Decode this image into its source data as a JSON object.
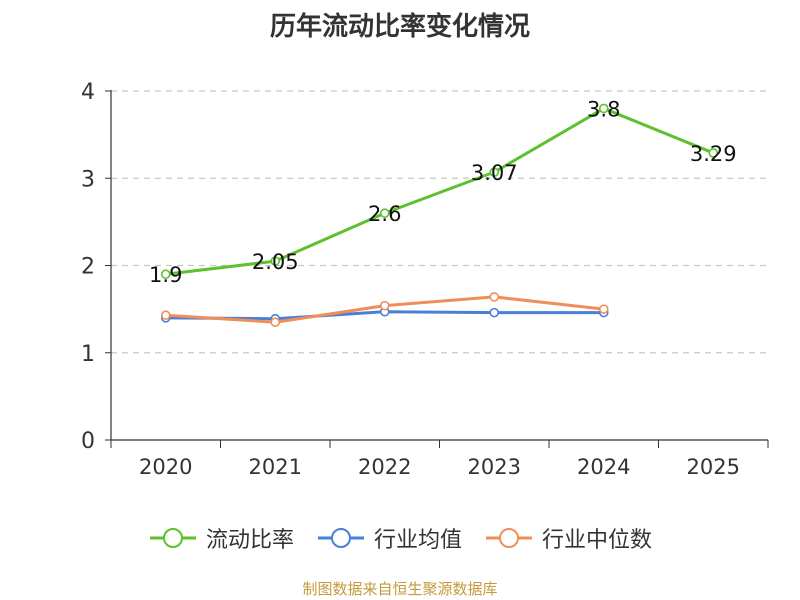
{
  "chart_data": {
    "type": "line",
    "title": "历年流动比率变化情况",
    "categories": [
      "2020",
      "2021",
      "2022",
      "2023",
      "2024",
      "2025"
    ],
    "ylim": [
      0,
      4
    ],
    "yticks": [
      0,
      1,
      2,
      3,
      4
    ],
    "grid": true,
    "legend_position": "bottom",
    "series": [
      {
        "name": "流动比率",
        "color": "#5cc12d",
        "values": [
          1.9,
          2.05,
          2.6,
          3.07,
          3.8,
          3.29
        ],
        "labels": [
          "1.9",
          "2.05",
          "2.6",
          "3.07",
          "3.8",
          "3.29"
        ]
      },
      {
        "name": "行业均值",
        "color": "#4a7fd8",
        "values": [
          1.4,
          1.39,
          1.47,
          1.46,
          1.46,
          null
        ]
      },
      {
        "name": "行业中位数",
        "color": "#f08e5a",
        "values": [
          1.43,
          1.35,
          1.54,
          1.64,
          1.5,
          null
        ]
      }
    ]
  },
  "source": "制图数据来自恒生聚源数据库"
}
